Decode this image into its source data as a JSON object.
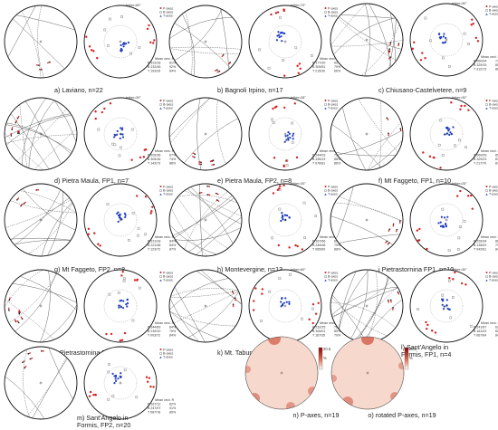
{
  "panels": [
    {
      "caption": "a) Laviano, n=22",
      "tether": "tether=60°",
      "stats": [
        "P 313/18",
        "B 232/45",
        "T 193/39"
      ],
      "pcts": [
        "81%",
        "92%",
        "84%"
      ]
    },
    {
      "caption": "b) Bagnoli Irpino, n=17",
      "tether": "tether=72°",
      "stats": [
        "P 177/20",
        "B 309/51",
        "T 215/30"
      ],
      "pcts": [
        "62%",
        "79%",
        "66%"
      ]
    },
    {
      "caption": "c) Chiusano-Castelvetere, n=9",
      "tether": "tether=30°",
      "stats": [
        "P 060/04",
        "B 329/15",
        "T 312/73"
      ],
      "pcts": [
        "73%",
        "80%",
        "86%"
      ]
    },
    {
      "caption": "d) Pietra Maula, FP1, n=7",
      "tether": "tether=30°",
      "stats": [
        "P 209/36",
        "B 305/16",
        "T 143/73"
      ],
      "pcts": [
        "67%",
        "74%",
        "88%"
      ]
    },
    {
      "caption": "e) Pietra Maula, FP2, n=8",
      "tether": "tether=28°",
      "stats": [
        "P 244/03",
        "B 335/13",
        "T 076/81"
      ],
      "pcts": [
        "72%",
        "88%",
        "86%"
      ]
    },
    {
      "caption": "f) Mt Faggeto, FP1, n=10",
      "tether": "tether=30°",
      "stats": [
        "P 060/09",
        "B 329/23",
        "T 217/70"
      ],
      "pcts": [
        "85%",
        "81%",
        "87%"
      ]
    },
    {
      "caption": "g) Mt Faggeto, FP2, n=8",
      "tether": "",
      "stats": [
        "P 313/18",
        "B 221/48",
        "T 123/72"
      ],
      "pcts": [
        "84%",
        "84%",
        "87%"
      ]
    },
    {
      "caption": "h) Montevergine, n=13",
      "tether": "tether=30°",
      "stats": [
        "P 167/66",
        "B 245/08",
        "T 065/69"
      ],
      "pcts": [
        "60%",
        "79%",
        "88%"
      ]
    },
    {
      "caption": "i Pietrastornina FP1, n=10",
      "tether": "tether=25°",
      "stats": [
        "P 228/34",
        "B 135/02",
        "T 042/61"
      ],
      "pcts": [
        "86%",
        "79%",
        "84%"
      ]
    },
    {
      "caption": "j) Pietrastornina FP2, n=12",
      "tether": "",
      "stats": [
        "P 344/60",
        "B 239/10",
        "T 003/72"
      ],
      "pcts": [
        "84%",
        "79%",
        "84%"
      ]
    },
    {
      "caption": "k) Mt. Taburno, n=33",
      "tether": "tether=60°",
      "stats": [
        "P 232/25",
        "B 305/01",
        "T 167/35"
      ],
      "pcts": [
        "78%",
        "80%",
        "79%"
      ]
    },
    {
      "caption": "l) Sant'Angelo in Formis, FP1, n=4",
      "tether": "tether=30°",
      "stats": [
        "P 241/87",
        "B 161/02",
        "T 067/64"
      ],
      "pcts": [
        "62%",
        "82%",
        "84%"
      ]
    },
    {
      "caption": "m) Sant'Angelo in Formis, FP2, n=20",
      "tether": "",
      "stats": [
        "P 167/12",
        "B 247/07",
        "T 087/78"
      ],
      "pcts": [
        "82%",
        "91%",
        "89%"
      ]
    }
  ],
  "legend": {
    "p": "P-axes",
    "b": "B-axes",
    "t": "T-axes"
  },
  "mean_header": "Mean vect. R",
  "density_panels": [
    {
      "caption": "n) P-axes, n=19"
    },
    {
      "caption": "o) rotated P-axes, n=19"
    }
  ],
  "density_scale": {
    "max": "20.5",
    "unit": "%"
  },
  "colors": {
    "p_axes": "#d62020",
    "b_axes": "#888888",
    "t_axes": "#1f3fbf",
    "density_base": "#f6d8cc"
  }
}
